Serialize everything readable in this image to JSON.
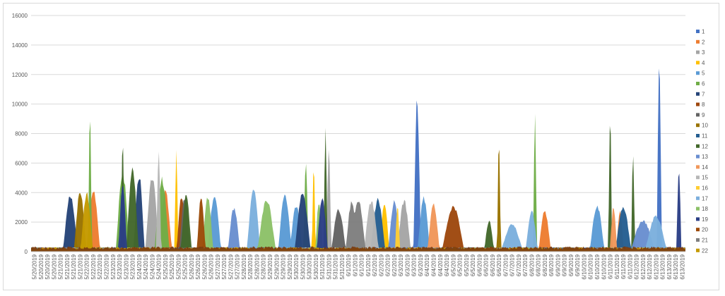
{
  "chart_data": {
    "type": "area",
    "title": "",
    "xlabel": "",
    "ylabel": "",
    "ylim": [
      0,
      16000
    ],
    "y_ticks": [
      0,
      2000,
      4000,
      6000,
      8000,
      10000,
      12000,
      14000,
      16000
    ],
    "grid": true,
    "legend_position": "right",
    "x_tick_labels": [
      "5/20/2019",
      "5/20/2019",
      "5/20/2019",
      "5/20/2019",
      "5/21/2019",
      "5/21/2019",
      "5/21/2019",
      "5/21/2019",
      "5/22/2019",
      "5/22/2019",
      "5/22/2019",
      "5/22/2019",
      "5/23/2019",
      "5/23/2019",
      "5/23/2019",
      "5/23/2019",
      "5/24/2019",
      "5/24/2019",
      "5/24/2019",
      "5/24/2019",
      "5/25/2019",
      "5/25/2019",
      "5/25/2019",
      "5/25/2019",
      "5/26/2019",
      "5/26/2019",
      "5/26/2019",
      "5/26/2019",
      "5/27/2019",
      "5/27/2019",
      "5/27/2019",
      "5/27/2019",
      "5/28/2019",
      "5/28/2019",
      "5/28/2019",
      "5/28/2019",
      "5/29/2019",
      "5/29/2019",
      "5/29/2019",
      "5/29/2019",
      "5/30/2019",
      "5/30/2019",
      "5/30/2019",
      "5/30/2019",
      "5/31/2019",
      "5/31/2019",
      "5/31/2019",
      "5/31/2019",
      "6/1/2019",
      "6/1/2019",
      "6/1/2019",
      "6/1/2019",
      "6/2/2019",
      "6/2/2019",
      "6/2/2019",
      "6/2/2019",
      "6/3/2019",
      "6/3/2019",
      "6/3/2019",
      "6/3/2019",
      "6/4/2019",
      "6/4/2019",
      "6/4/2019",
      "6/4/2019",
      "6/5/2019",
      "6/5/2019",
      "6/5/2019",
      "6/5/2019",
      "6/6/2019",
      "6/6/2019",
      "6/6/2019",
      "6/6/2019",
      "6/7/2019",
      "6/7/2019",
      "6/7/2019",
      "6/7/2019",
      "6/8/2019",
      "6/8/2019",
      "6/8/2019",
      "6/8/2019",
      "6/9/2019",
      "6/9/2019",
      "6/9/2019",
      "6/9/2019",
      "6/10/2019",
      "6/10/2019",
      "6/10/2019",
      "6/10/2019",
      "6/11/2019",
      "6/11/2019",
      "6/11/2019",
      "6/11/2019",
      "6/12/2019",
      "6/12/2019",
      "6/12/2019",
      "6/12/2019",
      "6/13/2019",
      "6/13/2019",
      "6/13/2019",
      "6/13/2019"
    ],
    "series": [
      {
        "name": "1",
        "color": "#4472c4",
        "humps": [
          [
            0.59,
            0.006,
            10800
          ],
          [
            0.96,
            0.004,
            14000
          ]
        ]
      },
      {
        "name": "2",
        "color": "#ed7d31",
        "humps": [
          [
            0.095,
            0.011,
            4300
          ],
          [
            0.205,
            0.011,
            4300
          ],
          [
            0.785,
            0.01,
            2900
          ],
          [
            0.9,
            0.006,
            2800
          ]
        ]
      },
      {
        "name": "3",
        "color": "#a5a5a5",
        "humps": [
          [
            0.185,
            0.011,
            5300
          ],
          [
            0.57,
            0.011,
            3600
          ],
          [
            0.455,
            0.004,
            7100
          ]
        ]
      },
      {
        "name": "4",
        "color": "#ffc000",
        "humps": [
          [
            0.54,
            0.008,
            3400
          ],
          [
            0.222,
            0.003,
            7000
          ],
          [
            0.432,
            0.003,
            6200
          ]
        ]
      },
      {
        "name": "5",
        "color": "#5b9bd5",
        "humps": [
          [
            0.28,
            0.011,
            3900
          ],
          [
            0.388,
            0.011,
            4100
          ],
          [
            0.405,
            0.01,
            3300
          ],
          [
            0.6,
            0.01,
            3800
          ],
          [
            0.865,
            0.012,
            3200
          ]
        ]
      },
      {
        "name": "6",
        "color": "#70ad47",
        "humps": [
          [
            0.14,
            0.011,
            5500
          ],
          [
            0.2,
            0.012,
            5100
          ],
          [
            0.42,
            0.004,
            6200
          ],
          [
            0.77,
            0.003,
            9500
          ],
          [
            0.09,
            0.003,
            9800
          ]
        ]
      },
      {
        "name": "7",
        "color": "#264478",
        "humps": [
          [
            0.06,
            0.012,
            4000
          ],
          [
            0.165,
            0.009,
            5400
          ],
          [
            0.415,
            0.013,
            4100
          ]
        ]
      },
      {
        "name": "8",
        "color": "#9e480e",
        "humps": [
          [
            0.645,
            0.018,
            3200
          ],
          [
            0.23,
            0.008,
            4000
          ]
        ]
      },
      {
        "name": "9",
        "color": "#636363",
        "humps": [
          [
            0.47,
            0.012,
            3000
          ],
          [
            0.235,
            0.009,
            3900
          ]
        ]
      },
      {
        "name": "10",
        "color": "#997300",
        "humps": [
          [
            0.075,
            0.01,
            4200
          ],
          [
            0.715,
            0.003,
            8000
          ]
        ]
      },
      {
        "name": "11",
        "color": "#255e91",
        "humps": [
          [
            0.53,
            0.012,
            3700
          ],
          [
            0.905,
            0.013,
            3200
          ]
        ]
      },
      {
        "name": "12",
        "color": "#43682b",
        "humps": [
          [
            0.155,
            0.01,
            5800
          ],
          [
            0.237,
            0.009,
            4000
          ],
          [
            0.45,
            0.003,
            9000
          ],
          [
            0.885,
            0.003,
            9600
          ],
          [
            0.92,
            0.003,
            7200
          ],
          [
            0.7,
            0.008,
            2200
          ],
          [
            0.14,
            0.003,
            8000
          ]
        ]
      },
      {
        "name": "13",
        "color": "#698ed0",
        "humps": [
          [
            0.31,
            0.01,
            3100
          ],
          [
            0.555,
            0.01,
            3500
          ],
          [
            0.935,
            0.02,
            2200
          ]
        ]
      },
      {
        "name": "14",
        "color": "#f1975a",
        "humps": [
          [
            0.615,
            0.01,
            3300
          ],
          [
            0.89,
            0.006,
            3100
          ]
        ]
      },
      {
        "name": "15",
        "color": "#b7b7b7",
        "humps": [
          [
            0.52,
            0.012,
            3600
          ],
          [
            0.195,
            0.004,
            7000
          ]
        ]
      },
      {
        "name": "16",
        "color": "#ffcd33",
        "humps": [
          [
            0.56,
            0.004,
            3200
          ]
        ]
      },
      {
        "name": "17",
        "color": "#7cafdd",
        "humps": [
          [
            0.34,
            0.011,
            4400
          ],
          [
            0.735,
            0.018,
            1900
          ],
          [
            0.765,
            0.01,
            2900
          ],
          [
            0.955,
            0.018,
            2500
          ]
        ]
      },
      {
        "name": "18",
        "color": "#8cc168",
        "humps": [
          [
            0.36,
            0.015,
            3600
          ],
          [
            0.27,
            0.009,
            3800
          ],
          [
            0.44,
            0.006,
            3600
          ]
        ]
      },
      {
        "name": "19",
        "color": "#2b3f86",
        "humps": [
          [
            0.14,
            0.007,
            4900
          ],
          [
            0.445,
            0.009,
            3800
          ],
          [
            0.99,
            0.004,
            5900
          ]
        ]
      },
      {
        "name": "20",
        "color": "#9c4a08",
        "humps": [
          [
            0.26,
            0.007,
            4000
          ]
        ]
      },
      {
        "name": "21",
        "color": "#7f7f7f",
        "humps": [
          [
            0.49,
            0.01,
            3500
          ],
          [
            0.5,
            0.012,
            3700
          ]
        ]
      },
      {
        "name": "22",
        "color": "#c49a00",
        "humps": [
          [
            0.085,
            0.01,
            4100
          ]
        ]
      }
    ]
  }
}
